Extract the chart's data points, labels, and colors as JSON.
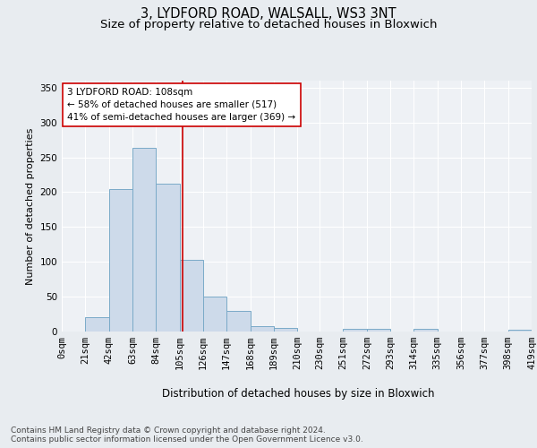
{
  "title_line1": "3, LYDFORD ROAD, WALSALL, WS3 3NT",
  "title_line2": "Size of property relative to detached houses in Bloxwich",
  "xlabel": "Distribution of detached houses by size in Bloxwich",
  "ylabel": "Number of detached properties",
  "footnote": "Contains HM Land Registry data © Crown copyright and database right 2024.\nContains public sector information licensed under the Open Government Licence v3.0.",
  "bin_labels": [
    "0sqm",
    "21sqm",
    "42sqm",
    "63sqm",
    "84sqm",
    "105sqm",
    "126sqm",
    "147sqm",
    "168sqm",
    "189sqm",
    "210sqm",
    "230sqm",
    "251sqm",
    "272sqm",
    "293sqm",
    "314sqm",
    "335sqm",
    "356sqm",
    "377sqm",
    "398sqm",
    "419sqm"
  ],
  "bar_heights": [
    0,
    20,
    205,
    263,
    212,
    103,
    50,
    29,
    8,
    5,
    0,
    0,
    4,
    4,
    0,
    4,
    0,
    0,
    0,
    2
  ],
  "bin_edges": [
    0,
    21,
    42,
    63,
    84,
    105,
    126,
    147,
    168,
    189,
    210,
    230,
    251,
    272,
    293,
    314,
    335,
    356,
    377,
    398,
    419
  ],
  "bar_facecolor": "#cddaea",
  "bar_edgecolor": "#7aaac8",
  "vline_x": 108,
  "vline_color": "#cc0000",
  "annotation_text": "3 LYDFORD ROAD: 108sqm\n← 58% of detached houses are smaller (517)\n41% of semi-detached houses are larger (369) →",
  "annotation_box_edgecolor": "#cc0000",
  "annotation_box_facecolor": "#ffffff",
  "ylim": [
    0,
    360
  ],
  "yticks": [
    0,
    50,
    100,
    150,
    200,
    250,
    300,
    350
  ],
  "background_color": "#e8ecf0",
  "plot_background": "#eef1f5",
  "grid_color": "#ffffff",
  "title_fontsize": 10.5,
  "subtitle_fontsize": 9.5,
  "axis_label_fontsize": 8,
  "tick_fontsize": 7.5,
  "annotation_fontsize": 7.5,
  "footnote_fontsize": 6.5
}
